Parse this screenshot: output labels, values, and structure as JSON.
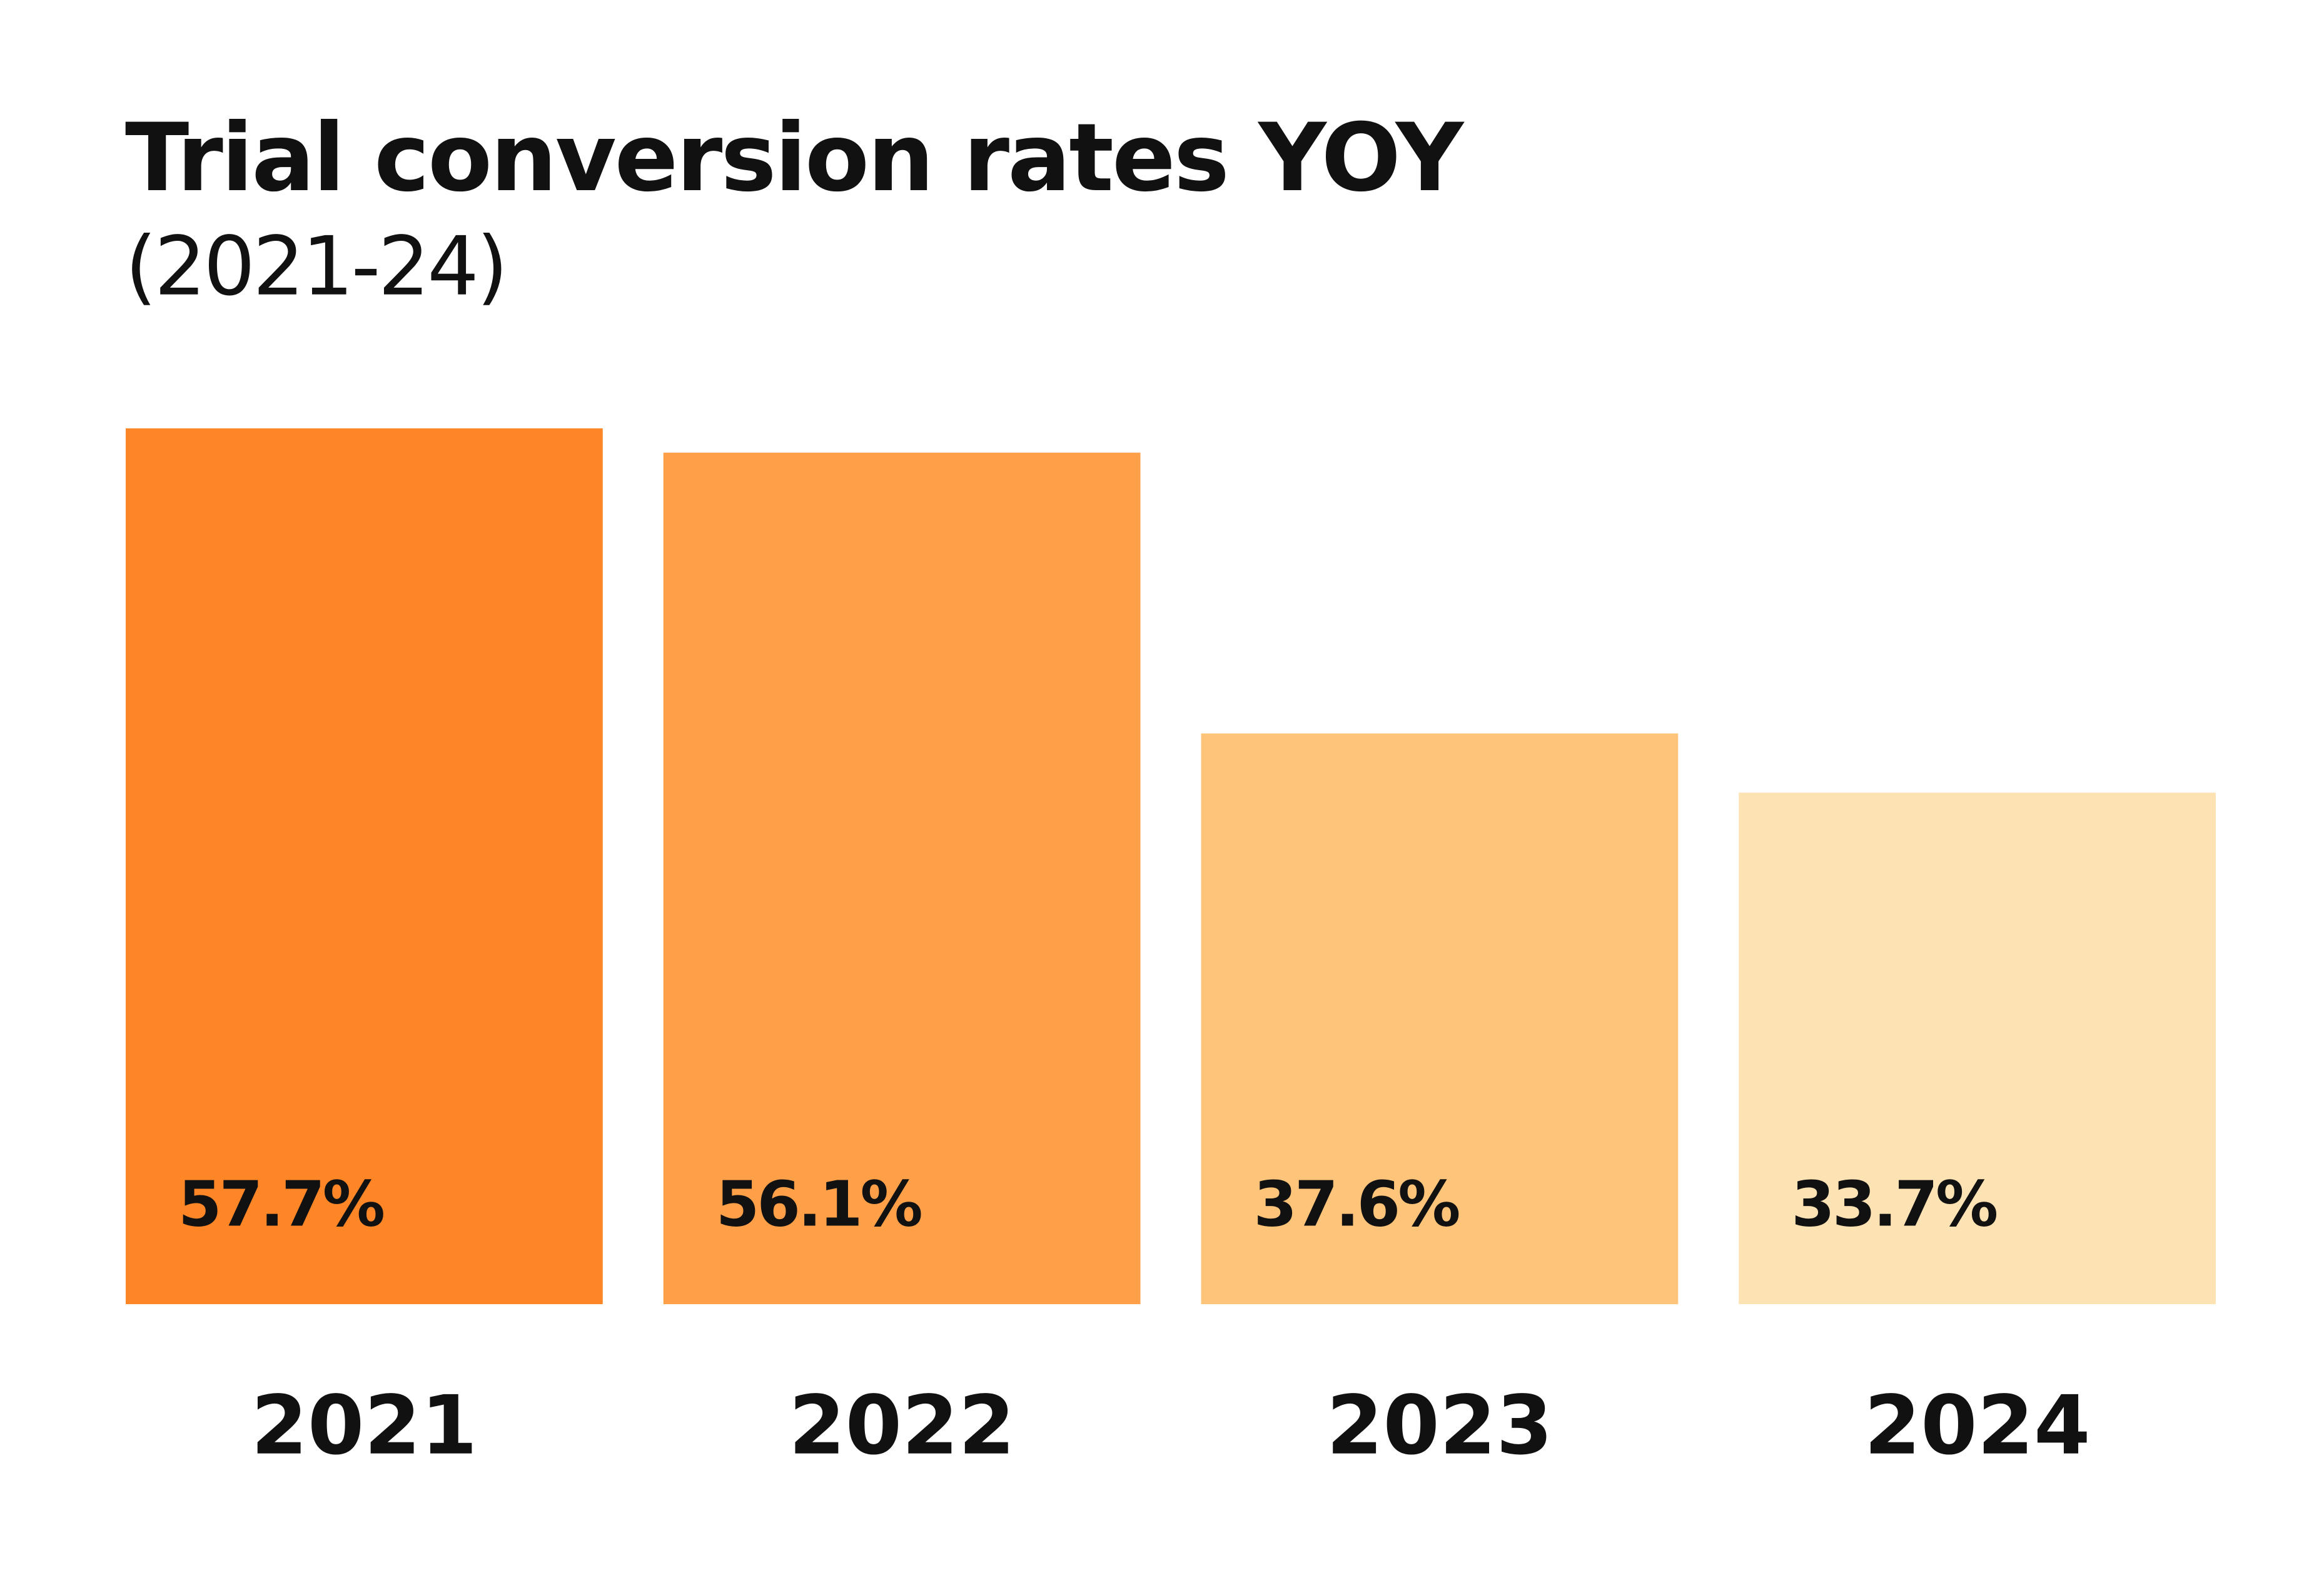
{
  "chart_data": {
    "type": "bar",
    "title": "Trial conversion rates YOY",
    "subtitle": "(2021-24)",
    "categories": [
      "2021",
      "2022",
      "2023",
      "2024"
    ],
    "values": [
      57.7,
      56.1,
      37.6,
      33.7
    ],
    "value_labels": [
      "57.7%",
      "56.1%",
      "37.6%",
      "33.7%"
    ],
    "colors": [
      "#ff8626",
      "#ffa048",
      "#fec479",
      "#fde2b3"
    ],
    "ylim": [
      0,
      60
    ]
  }
}
